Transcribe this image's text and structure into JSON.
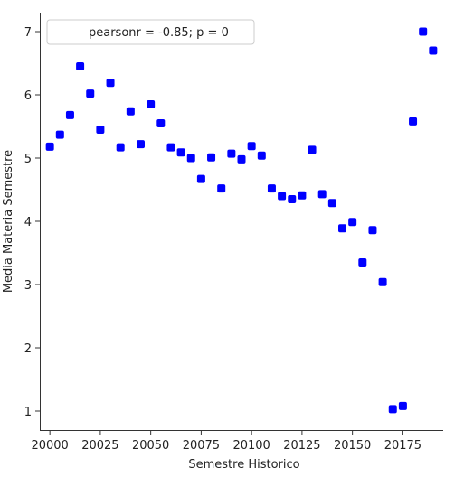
{
  "chart_data": {
    "type": "scatter",
    "xlabel": "Semestre Historico",
    "ylabel": "Media Materia Semestre",
    "xlim": [
      19995,
      20195
    ],
    "ylim": [
      0.7,
      7.3
    ],
    "xticks": [
      20000,
      20025,
      20050,
      20075,
      20100,
      20125,
      20150,
      20175
    ],
    "yticks": [
      1,
      2,
      3,
      4,
      5,
      6,
      7
    ],
    "legend": {
      "text": "pearsonr = -0.85; p = 0",
      "placement": "top-left"
    },
    "grid": false,
    "marker_color": "#0000ff",
    "points": [
      [
        20000,
        5.18
      ],
      [
        20005,
        5.37
      ],
      [
        20010,
        5.68
      ],
      [
        20015,
        6.45
      ],
      [
        20020,
        6.02
      ],
      [
        20025,
        5.45
      ],
      [
        20030,
        6.19
      ],
      [
        20035,
        5.17
      ],
      [
        20040,
        5.74
      ],
      [
        20045,
        5.22
      ],
      [
        20050,
        5.85
      ],
      [
        20055,
        5.55
      ],
      [
        20060,
        5.17
      ],
      [
        20065,
        5.09
      ],
      [
        20070,
        5.0
      ],
      [
        20075,
        4.67
      ],
      [
        20080,
        5.01
      ],
      [
        20085,
        4.52
      ],
      [
        20090,
        5.07
      ],
      [
        20095,
        4.98
      ],
      [
        20100,
        5.19
      ],
      [
        20105,
        5.04
      ],
      [
        20110,
        4.52
      ],
      [
        20115,
        4.4
      ],
      [
        20120,
        4.35
      ],
      [
        20125,
        4.41
      ],
      [
        20130,
        5.13
      ],
      [
        20135,
        4.43
      ],
      [
        20140,
        4.29
      ],
      [
        20145,
        3.89
      ],
      [
        20150,
        3.99
      ],
      [
        20155,
        3.35
      ],
      [
        20160,
        3.86
      ],
      [
        20165,
        3.04
      ],
      [
        20170,
        1.03
      ],
      [
        20175,
        1.08
      ],
      [
        20180,
        5.58
      ],
      [
        20185,
        7.0
      ],
      [
        20190,
        6.7
      ]
    ]
  }
}
